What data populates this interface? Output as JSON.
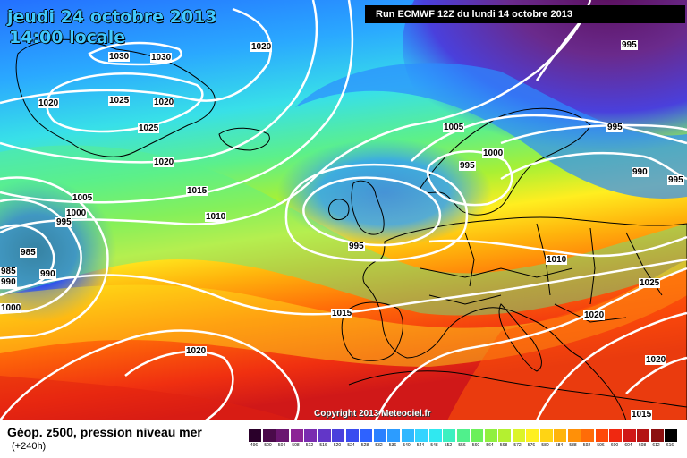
{
  "header": {
    "date": "jeudi 24 octobre 2013",
    "local_time": "14:00 locale",
    "run_info": "Run ECMWF 12Z du lundi 14 octobre 2013"
  },
  "footer": {
    "product": "Géop. z500, pression niveau mer",
    "lead_time": "(+240h)",
    "copyright": "Copyright 2013 Meteociel.fr"
  },
  "isobar_labels": [
    {
      "text": "1030"
    },
    {
      "text": "1030"
    },
    {
      "text": "1020"
    },
    {
      "text": "1020"
    },
    {
      "text": "1025"
    },
    {
      "text": "1020"
    },
    {
      "text": "1025"
    },
    {
      "text": "1020"
    },
    {
      "text": "1015"
    },
    {
      "text": "1010"
    },
    {
      "text": "1005"
    },
    {
      "text": "1000"
    },
    {
      "text": "995"
    },
    {
      "text": "985"
    },
    {
      "text": "990"
    },
    {
      "text": "985"
    },
    {
      "text": "990"
    },
    {
      "text": "1000"
    },
    {
      "text": "1005"
    },
    {
      "text": "995"
    },
    {
      "text": "1000"
    },
    {
      "text": "995"
    },
    {
      "text": "995"
    },
    {
      "text": "995"
    },
    {
      "text": "990"
    },
    {
      "text": "995"
    },
    {
      "text": "1010"
    },
    {
      "text": "1025"
    },
    {
      "text": "1020"
    },
    {
      "text": "1015"
    },
    {
      "text": "1020"
    },
    {
      "text": "1020"
    },
    {
      "text": "1015"
    }
  ],
  "legend": {
    "ticks": [
      "496",
      "500",
      "504",
      "508",
      "512",
      "516",
      "520",
      "524",
      "528",
      "532",
      "536",
      "540",
      "544",
      "548",
      "552",
      "556",
      "560",
      "564",
      "568",
      "572",
      "576",
      "580",
      "584",
      "588",
      "592",
      "596",
      "600",
      "604",
      "608",
      "612",
      "616"
    ],
    "colors": [
      "#2a002a",
      "#4a0a4a",
      "#6a1670",
      "#8c2496",
      "#7a2cb0",
      "#6236c8",
      "#4a40dc",
      "#3a4cf0",
      "#2e62ff",
      "#2a80ff",
      "#2c9cff",
      "#30b8ff",
      "#34d4ff",
      "#30e8f0",
      "#3cf0c0",
      "#50f08c",
      "#6cf05a",
      "#90f040",
      "#b4f030",
      "#dcf428",
      "#fff020",
      "#ffd414",
      "#ffb40c",
      "#ff9008",
      "#ff6c08",
      "#ff4808",
      "#f02810",
      "#d01818",
      "#b41414",
      "#8c1010",
      "#000000"
    ]
  }
}
